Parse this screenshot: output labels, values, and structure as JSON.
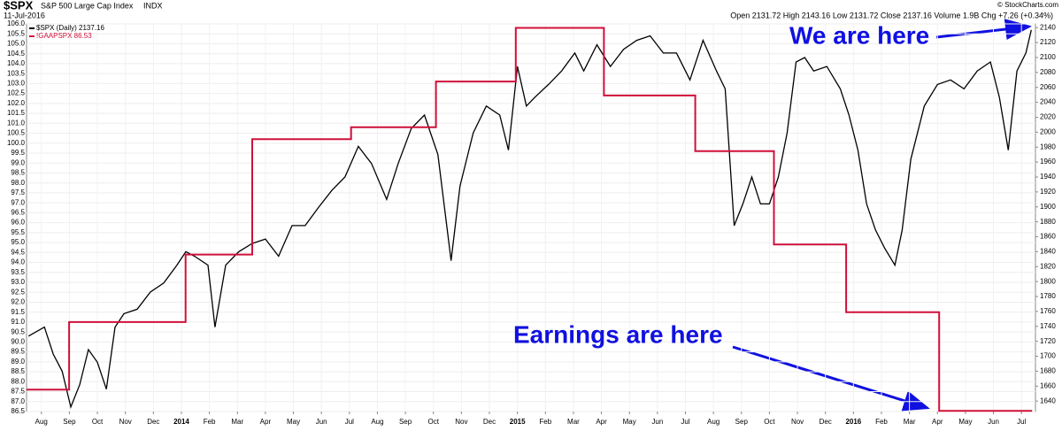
{
  "chart_data": {
    "type": "line",
    "title": "$SPX",
    "subtitle": "S&P 500 Large Cap Index",
    "exchange": "INDX",
    "date": "11-Jul-2016",
    "quote": "Open 2131.72 High 2143.16 Low 2131.72 Close 2137.16 Volume 1.9B Chg +7.26 (+0.34%)",
    "source": "© StockCharts.com",
    "annotations": [
      "We are here",
      "Earnings are here"
    ],
    "grid": true,
    "xlim": [
      0.47,
      36.5
    ],
    "xticks": [
      {
        "value": 1,
        "label": "Aug"
      },
      {
        "value": 2,
        "label": "Sep"
      },
      {
        "value": 3,
        "label": "Oct"
      },
      {
        "value": 4,
        "label": "Nov"
      },
      {
        "value": 5,
        "label": "Dec"
      },
      {
        "value": 6,
        "label": "2014"
      },
      {
        "value": 7,
        "label": "Feb"
      },
      {
        "value": 8,
        "label": "Mar"
      },
      {
        "value": 9,
        "label": "Apr"
      },
      {
        "value": 10,
        "label": "May"
      },
      {
        "value": 11,
        "label": "Jun"
      },
      {
        "value": 12,
        "label": "Jul"
      },
      {
        "value": 13,
        "label": "Aug"
      },
      {
        "value": 14,
        "label": "Sep"
      },
      {
        "value": 15,
        "label": "Oct"
      },
      {
        "value": 16,
        "label": "Nov"
      },
      {
        "value": 17,
        "label": "Dec"
      },
      {
        "value": 18,
        "label": "2015"
      },
      {
        "value": 19,
        "label": "Feb"
      },
      {
        "value": 20,
        "label": "Mar"
      },
      {
        "value": 21,
        "label": "Apr"
      },
      {
        "value": 22,
        "label": "May"
      },
      {
        "value": 23,
        "label": "Jun"
      },
      {
        "value": 24,
        "label": "Jul"
      },
      {
        "value": 25,
        "label": "Aug"
      },
      {
        "value": 26,
        "label": "Sep"
      },
      {
        "value": 27,
        "label": "Oct"
      },
      {
        "value": 28,
        "label": "Nov"
      },
      {
        "value": 29,
        "label": "Dec"
      },
      {
        "value": 30,
        "label": "2016"
      },
      {
        "value": 31,
        "label": "Feb"
      },
      {
        "value": 32,
        "label": "Mar"
      },
      {
        "value": 33,
        "label": "Apr"
      },
      {
        "value": 34,
        "label": "May"
      },
      {
        "value": 35,
        "label": "Jun"
      },
      {
        "value": 36,
        "label": "Jul"
      }
    ],
    "ylim": [
      86.5,
      106.0
    ],
    "yticks": [
      86.5,
      {
        "value": 87,
        "label": "87.0"
      },
      87.5,
      {
        "value": 88,
        "label": "88.0"
      },
      88.5,
      {
        "value": 89,
        "label": "89.0"
      },
      89.5,
      {
        "value": 90,
        "label": "90.0"
      },
      90.5,
      {
        "value": 91,
        "label": "91.0"
      },
      91.5,
      {
        "value": 92,
        "label": "92.0"
      },
      92.5,
      {
        "value": 93,
        "label": "93.0"
      },
      93.5,
      {
        "value": 94,
        "label": "94.0"
      },
      94.5,
      {
        "value": 95,
        "label": "95.0"
      },
      95.5,
      {
        "value": 96,
        "label": "96.0"
      },
      96.5,
      {
        "value": 97,
        "label": "97.0"
      },
      97.5,
      {
        "value": 98,
        "label": "98.0"
      },
      98.5,
      {
        "value": 99,
        "label": "99.0"
      },
      99.5,
      {
        "value": 100,
        "label": "100.0"
      },
      100.5,
      {
        "value": 101,
        "label": "101.0"
      },
      101.5,
      {
        "value": 102,
        "label": "102.0"
      },
      102.5,
      {
        "value": 103,
        "label": "103.0"
      },
      103.5,
      {
        "value": 104,
        "label": "104.0"
      },
      104.5,
      {
        "value": 105,
        "label": "105.0"
      },
      105.5,
      {
        "value": 106,
        "label": "106.0"
      }
    ],
    "y2lim": [
      1626,
      2145
    ],
    "y2ticks": [
      1640,
      1660,
      1680,
      1700,
      1720,
      1740,
      1760,
      1780,
      1800,
      1820,
      1840,
      1860,
      1880,
      1900,
      1920,
      1940,
      1960,
      1980,
      2000,
      2020,
      2040,
      2060,
      2080,
      2100,
      2120,
      2140
    ],
    "series": [
      {
        "name": "$SPX (Daily) 2137.16",
        "color": "#000000",
        "axis": "y2",
        "x": [
          0.54,
          1.11,
          1.42,
          1.74,
          2.05,
          2.37,
          2.68,
          3.0,
          3.32,
          3.63,
          3.95,
          4.42,
          4.89,
          5.37,
          5.84,
          6.16,
          6.47,
          6.95,
          7.2,
          7.58,
          8.05,
          8.53,
          9.0,
          9.47,
          9.95,
          10.42,
          10.89,
          11.37,
          11.84,
          12.32,
          12.79,
          13.33,
          13.74,
          14.21,
          14.68,
          15.16,
          15.63,
          15.95,
          16.42,
          16.89,
          17.37,
          17.68,
          18.0,
          18.32,
          18.63,
          19.11,
          19.58,
          20.05,
          20.37,
          20.84,
          21.32,
          21.79,
          22.26,
          22.74,
          23.21,
          23.68,
          24.16,
          24.63,
          25.11,
          25.42,
          25.74,
          26.05,
          26.37,
          26.68,
          27.0,
          27.32,
          27.63,
          27.95,
          28.26,
          28.58,
          29.05,
          29.53,
          29.84,
          30.16,
          30.47,
          30.79,
          31.11,
          31.48,
          31.74,
          32.05,
          32.53,
          33.0,
          33.47,
          33.95,
          34.42,
          34.89,
          35.21,
          35.53,
          35.84,
          36.16,
          36.35
        ],
        "values": [
          1727,
          1739,
          1703,
          1680,
          1632,
          1662,
          1709,
          1692,
          1656,
          1739,
          1757,
          1763,
          1786,
          1798,
          1822,
          1840,
          1834,
          1822,
          1739,
          1822,
          1840,
          1851,
          1857,
          1834,
          1875,
          1875,
          1899,
          1922,
          1940,
          1981,
          1958,
          1910,
          1958,
          2005,
          2023,
          1970,
          1828,
          1928,
          1999,
          2035,
          2023,
          1976,
          2088,
          2035,
          2047,
          2064,
          2082,
          2106,
          2082,
          2117,
          2088,
          2111,
          2123,
          2129,
          2106,
          2106,
          2070,
          2123,
          2082,
          2058,
          1875,
          1904,
          1940,
          1904,
          1904,
          1940,
          1999,
          2094,
          2100,
          2082,
          2088,
          2058,
          2023,
          1976,
          1904,
          1869,
          1845,
          1822,
          1869,
          1964,
          2035,
          2064,
          2070,
          2058,
          2082,
          2094,
          2047,
          1976,
          2082,
          2106,
          2137
        ]
      },
      {
        "name": "!GAAPSPX 86.53",
        "color": "#d0103a",
        "x": [
          0.47,
          1.99,
          1.99,
          6.15,
          6.15,
          8.53,
          8.53,
          12.06,
          12.06,
          15.09,
          15.09,
          17.94,
          17.94,
          21.09,
          21.09,
          24.35,
          24.35,
          27.16,
          27.16,
          29.74,
          29.74,
          33.06,
          33.06,
          36.38
        ],
        "values": [
          87.6,
          87.6,
          91.0,
          91.0,
          94.4,
          94.4,
          100.2,
          100.2,
          100.8,
          100.8,
          103.1,
          103.1,
          105.8,
          105.8,
          102.4,
          102.4,
          99.6,
          99.6,
          94.9,
          94.9,
          91.5,
          91.5,
          86.53,
          86.53
        ]
      }
    ]
  }
}
